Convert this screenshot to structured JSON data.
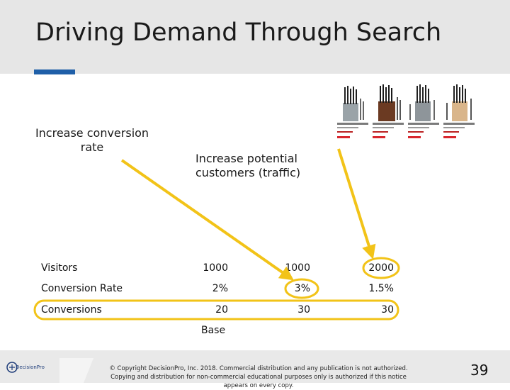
{
  "slide": {
    "title": "Driving Demand Through Search",
    "label_conversion": "Increase conversion rate",
    "label_traffic": "Increase potential customers (traffic)",
    "footer_label": "Base",
    "page_number": "39",
    "copyright": "© Copyright DecisionPro, Inc. 2018. Commercial distribution and any publication is not authorized. Copying and distribution for non-commercial educational purposes only is authorized if this notice appears on every copy.",
    "logo_text": "DecisionPro"
  },
  "table": {
    "rows": [
      {
        "label": "Visitors",
        "values": [
          "1000",
          "1000",
          "2000"
        ]
      },
      {
        "label": "Conversion Rate",
        "values": [
          "2%",
          "3%",
          "1.5%"
        ]
      },
      {
        "label": "Conversions",
        "values": [
          "20",
          "30",
          "30"
        ]
      }
    ]
  },
  "colors": {
    "accent": "#1f5fa8",
    "highlight": "#f2c318",
    "header_band": "#e6e6e6"
  }
}
